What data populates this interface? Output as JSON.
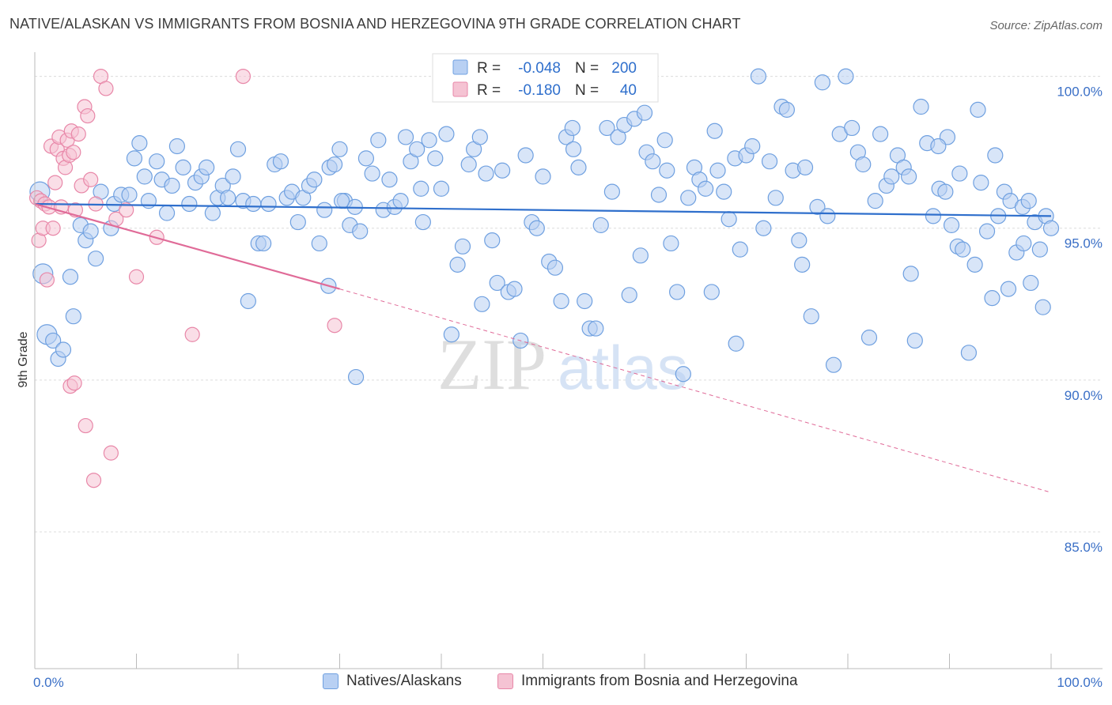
{
  "title": "NATIVE/ALASKAN VS IMMIGRANTS FROM BOSNIA AND HERZEGOVINA 9TH GRADE CORRELATION CHART",
  "source": "Source: ZipAtlas.com",
  "watermark": {
    "zip": "ZIP",
    "atlas": "atlas"
  },
  "colors": {
    "blue": "#6fa0e0",
    "blue_fill": "#b8d0f3",
    "blue_line": "#2f6fcc",
    "pink": "#e887a8",
    "pink_fill": "#f5c3d3",
    "pink_line": "#e06b98",
    "axis_text": "#3a6fc6"
  },
  "legend_top": {
    "rows": [
      {
        "r_label": "R =",
        "r_value": "-0.048",
        "n_label": "N =",
        "n_value": "200"
      },
      {
        "r_label": "R =",
        "r_value": "-0.180",
        "n_label": "N =",
        "n_value": "40"
      }
    ]
  },
  "legend_bottom": {
    "series1": "Natives/Alaskans",
    "series2": "Immigrants from Bosnia and Herzegovina"
  },
  "chart_data": {
    "type": "scatter",
    "ylabel": "9th Grade",
    "xlim": [
      0,
      100
    ],
    "ylim": [
      80.5,
      100.9
    ],
    "y_ticks": [
      {
        "value": 100,
        "label": "100.0%"
      },
      {
        "value": 95,
        "label": "95.0%"
      },
      {
        "value": 90,
        "label": "90.0%"
      },
      {
        "value": 85,
        "label": "85.0%"
      }
    ],
    "x_tick_labels": {
      "min": "0.0%",
      "max": "100.0%"
    },
    "series": [
      {
        "name": "Natives/Alaskans",
        "trend": {
          "x": [
            0,
            100
          ],
          "y": [
            95.8,
            95.4
          ]
        },
        "points": [
          [
            0.5,
            96.2
          ],
          [
            0.8,
            93.5
          ],
          [
            1.2,
            91.5
          ],
          [
            1.8,
            91.3
          ],
          [
            2.3,
            90.7
          ],
          [
            2.8,
            91.0
          ],
          [
            3.5,
            93.4
          ],
          [
            3.8,
            92.1
          ],
          [
            4.5,
            95.1
          ],
          [
            5.0,
            94.6
          ],
          [
            5.5,
            94.9
          ],
          [
            6.0,
            94.0
          ],
          [
            6.5,
            96.2
          ],
          [
            7.5,
            95.0
          ],
          [
            7.8,
            95.8
          ],
          [
            8.5,
            96.1
          ],
          [
            9.3,
            96.1
          ],
          [
            9.8,
            97.3
          ],
          [
            10.3,
            97.8
          ],
          [
            10.8,
            96.7
          ],
          [
            11.2,
            95.9
          ],
          [
            12.0,
            97.2
          ],
          [
            12.5,
            96.6
          ],
          [
            13.0,
            95.5
          ],
          [
            13.5,
            96.4
          ],
          [
            14.0,
            97.7
          ],
          [
            14.6,
            97.0
          ],
          [
            15.2,
            95.8
          ],
          [
            15.8,
            96.5
          ],
          [
            16.4,
            96.7
          ],
          [
            16.9,
            97.0
          ],
          [
            17.5,
            95.5
          ],
          [
            18.0,
            96.0
          ],
          [
            18.5,
            96.4
          ],
          [
            19.0,
            96.0
          ],
          [
            19.5,
            96.7
          ],
          [
            20.0,
            97.6
          ],
          [
            20.5,
            95.9
          ],
          [
            21.0,
            92.6
          ],
          [
            21.5,
            95.8
          ],
          [
            22.0,
            94.5
          ],
          [
            22.5,
            94.5
          ],
          [
            23.0,
            95.8
          ],
          [
            23.6,
            97.1
          ],
          [
            24.2,
            97.2
          ],
          [
            24.8,
            96.0
          ],
          [
            25.3,
            96.2
          ],
          [
            25.9,
            95.2
          ],
          [
            26.4,
            96.0
          ],
          [
            27.0,
            96.4
          ],
          [
            27.5,
            96.6
          ],
          [
            28.0,
            94.5
          ],
          [
            28.5,
            95.6
          ],
          [
            29.0,
            97.0
          ],
          [
            29.5,
            97.1
          ],
          [
            30.0,
            97.6
          ],
          [
            30.5,
            95.9
          ],
          [
            31.0,
            95.1
          ],
          [
            31.5,
            95.7
          ],
          [
            32.0,
            94.9
          ],
          [
            32.6,
            97.3
          ],
          [
            33.2,
            96.8
          ],
          [
            33.8,
            97.9
          ],
          [
            34.3,
            95.6
          ],
          [
            34.9,
            96.6
          ],
          [
            35.4,
            95.7
          ],
          [
            36.0,
            95.9
          ],
          [
            36.5,
            98.0
          ],
          [
            37.0,
            97.2
          ],
          [
            37.6,
            97.6
          ],
          [
            38.2,
            95.2
          ],
          [
            38.8,
            97.9
          ],
          [
            39.4,
            97.3
          ],
          [
            40.0,
            96.3
          ],
          [
            40.5,
            98.1
          ],
          [
            41.0,
            91.5
          ],
          [
            41.6,
            93.8
          ],
          [
            42.1,
            94.4
          ],
          [
            42.7,
            97.1
          ],
          [
            43.2,
            97.6
          ],
          [
            43.8,
            98.0
          ],
          [
            44.4,
            96.8
          ],
          [
            45.0,
            94.6
          ],
          [
            45.5,
            93.2
          ],
          [
            46.0,
            96.9
          ],
          [
            46.6,
            92.9
          ],
          [
            47.2,
            93.0
          ],
          [
            47.8,
            91.3
          ],
          [
            48.3,
            97.4
          ],
          [
            48.9,
            95.2
          ],
          [
            49.4,
            95.0
          ],
          [
            50.0,
            96.7
          ],
          [
            50.6,
            93.9
          ],
          [
            51.2,
            93.7
          ],
          [
            51.8,
            92.6
          ],
          [
            52.3,
            98.0
          ],
          [
            52.9,
            98.3
          ],
          [
            53.5,
            97.0
          ],
          [
            54.1,
            92.6
          ],
          [
            54.6,
            91.7
          ],
          [
            55.2,
            91.7
          ],
          [
            55.7,
            95.1
          ],
          [
            56.3,
            98.3
          ],
          [
            56.8,
            96.2
          ],
          [
            57.4,
            98.0
          ],
          [
            58.0,
            98.4
          ],
          [
            58.5,
            92.8
          ],
          [
            59.0,
            98.6
          ],
          [
            59.6,
            94.1
          ],
          [
            60.2,
            97.5
          ],
          [
            60.8,
            97.2
          ],
          [
            61.4,
            96.1
          ],
          [
            62.0,
            97.9
          ],
          [
            62.6,
            94.5
          ],
          [
            63.2,
            92.9
          ],
          [
            63.8,
            90.2
          ],
          [
            64.3,
            96.0
          ],
          [
            64.9,
            97.0
          ],
          [
            65.4,
            96.6
          ],
          [
            66.0,
            96.3
          ],
          [
            66.6,
            92.9
          ],
          [
            67.2,
            96.9
          ],
          [
            67.8,
            96.2
          ],
          [
            68.3,
            95.3
          ],
          [
            68.9,
            97.3
          ],
          [
            69.4,
            94.3
          ],
          [
            70.0,
            97.4
          ],
          [
            70.6,
            97.7
          ],
          [
            71.2,
            100.0
          ],
          [
            71.7,
            95.0
          ],
          [
            72.3,
            97.2
          ],
          [
            72.9,
            96.0
          ],
          [
            73.5,
            99.0
          ],
          [
            74.0,
            98.9
          ],
          [
            74.6,
            96.9
          ],
          [
            75.2,
            94.6
          ],
          [
            75.8,
            97.0
          ],
          [
            76.4,
            92.1
          ],
          [
            77.0,
            95.7
          ],
          [
            77.5,
            99.8
          ],
          [
            78.0,
            95.4
          ],
          [
            78.6,
            90.5
          ],
          [
            79.2,
            98.1
          ],
          [
            79.8,
            100.0
          ],
          [
            80.4,
            98.3
          ],
          [
            81.0,
            97.5
          ],
          [
            81.5,
            97.1
          ],
          [
            82.1,
            91.4
          ],
          [
            82.7,
            95.9
          ],
          [
            83.2,
            98.1
          ],
          [
            83.8,
            96.4
          ],
          [
            84.3,
            96.7
          ],
          [
            84.9,
            97.4
          ],
          [
            85.5,
            97.0
          ],
          [
            86.0,
            96.7
          ],
          [
            86.6,
            91.3
          ],
          [
            87.2,
            99.0
          ],
          [
            87.8,
            97.8
          ],
          [
            88.4,
            95.4
          ],
          [
            89.0,
            96.3
          ],
          [
            89.6,
            96.2
          ],
          [
            90.2,
            95.1
          ],
          [
            90.8,
            94.4
          ],
          [
            91.3,
            94.3
          ],
          [
            91.9,
            90.9
          ],
          [
            92.5,
            93.8
          ],
          [
            93.1,
            96.5
          ],
          [
            93.7,
            94.9
          ],
          [
            94.2,
            92.7
          ],
          [
            94.8,
            95.4
          ],
          [
            95.4,
            96.2
          ],
          [
            96.0,
            95.9
          ],
          [
            96.6,
            94.2
          ],
          [
            97.2,
            95.7
          ],
          [
            97.8,
            95.9
          ],
          [
            98.4,
            95.2
          ],
          [
            98.9,
            94.3
          ],
          [
            99.5,
            95.4
          ],
          [
            100.0,
            95.0
          ],
          [
            60.0,
            98.8
          ],
          [
            30.2,
            95.9
          ],
          [
            44.0,
            92.5
          ],
          [
            53.0,
            97.6
          ],
          [
            66.9,
            98.2
          ],
          [
            38.0,
            96.3
          ],
          [
            75.5,
            93.8
          ],
          [
            86.2,
            93.5
          ],
          [
            98.0,
            93.2
          ],
          [
            99.2,
            92.4
          ],
          [
            97.3,
            94.5
          ],
          [
            95.8,
            93.0
          ],
          [
            94.5,
            97.4
          ],
          [
            92.8,
            98.9
          ],
          [
            91.0,
            96.8
          ],
          [
            89.8,
            98.0
          ],
          [
            88.9,
            97.7
          ],
          [
            69.0,
            91.2
          ],
          [
            31.6,
            90.1
          ],
          [
            62.2,
            96.9
          ],
          [
            28.9,
            93.1
          ]
        ]
      },
      {
        "name": "Immigrants from Bosnia and Herzegovina",
        "trend": {
          "x": [
            0,
            30
          ],
          "y": [
            95.8,
            93.0
          ]
        },
        "trend_dashed": {
          "x": [
            30,
            100
          ],
          "y": [
            93.0,
            86.3
          ]
        },
        "points": [
          [
            0.2,
            96.0
          ],
          [
            0.4,
            94.6
          ],
          [
            0.6,
            95.9
          ],
          [
            0.8,
            95.0
          ],
          [
            1.0,
            95.8
          ],
          [
            1.2,
            93.3
          ],
          [
            1.4,
            95.7
          ],
          [
            1.6,
            97.7
          ],
          [
            1.8,
            95.0
          ],
          [
            2.0,
            96.5
          ],
          [
            2.2,
            97.6
          ],
          [
            2.4,
            98.0
          ],
          [
            2.6,
            95.7
          ],
          [
            2.8,
            97.3
          ],
          [
            3.0,
            97.0
          ],
          [
            3.2,
            97.9
          ],
          [
            3.4,
            97.4
          ],
          [
            3.6,
            98.2
          ],
          [
            3.8,
            97.5
          ],
          [
            4.0,
            95.6
          ],
          [
            4.3,
            98.1
          ],
          [
            4.6,
            96.4
          ],
          [
            4.9,
            99.0
          ],
          [
            5.2,
            98.7
          ],
          [
            5.5,
            96.6
          ],
          [
            6.0,
            95.8
          ],
          [
            6.5,
            100.0
          ],
          [
            7.0,
            99.6
          ],
          [
            8.0,
            95.3
          ],
          [
            9.0,
            95.6
          ],
          [
            10.0,
            93.4
          ],
          [
            3.5,
            89.8
          ],
          [
            3.9,
            89.9
          ],
          [
            5.0,
            88.5
          ],
          [
            5.8,
            86.7
          ],
          [
            7.5,
            87.6
          ],
          [
            20.5,
            100.0
          ],
          [
            15.5,
            91.5
          ],
          [
            29.5,
            91.8
          ],
          [
            12.0,
            94.7
          ]
        ]
      }
    ]
  }
}
